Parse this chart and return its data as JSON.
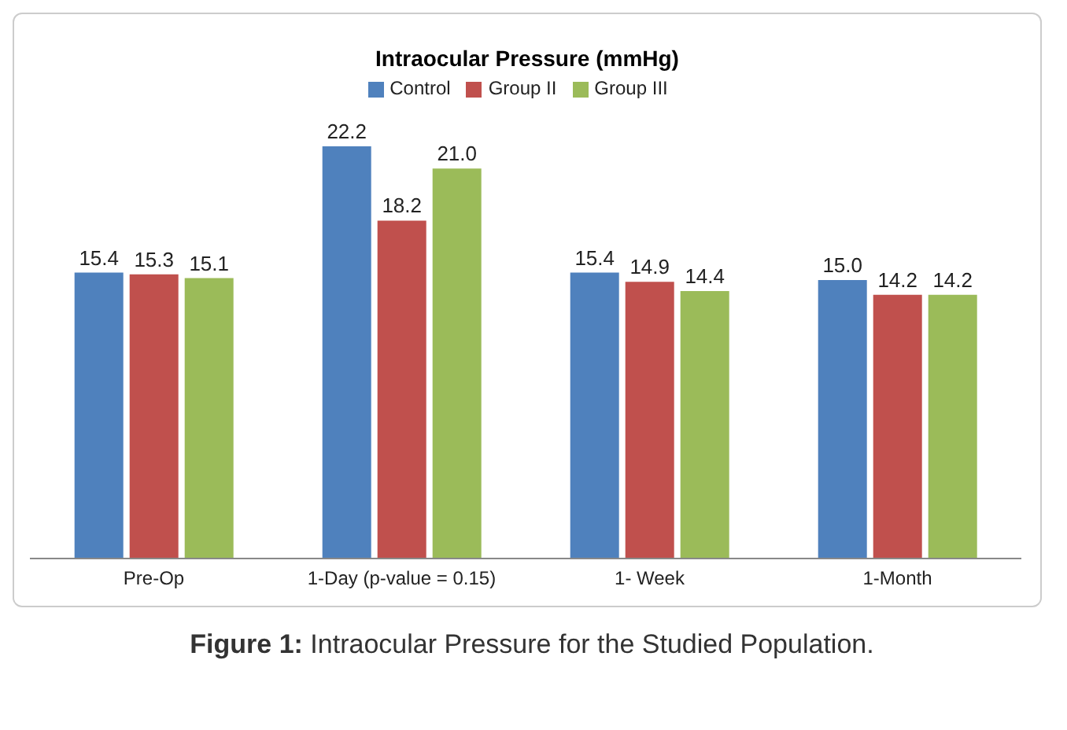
{
  "chart_data": {
    "type": "bar",
    "title": "Intraocular Pressure (mmHg)",
    "categories": [
      "Pre-Op",
      "1-Day (p-value = 0.15)",
      "1- Week",
      "1-Month"
    ],
    "series": [
      {
        "name": "Control",
        "color": "#4f81bd",
        "values": [
          15.4,
          22.2,
          15.4,
          15.0
        ],
        "value_labels": [
          "15.4",
          "22.2",
          "15.4",
          "15.0"
        ]
      },
      {
        "name": "Group II",
        "color": "#c0504d",
        "values": [
          15.3,
          18.2,
          14.9,
          14.2
        ],
        "value_labels": [
          "15.3",
          "18.2",
          "14.9",
          "14.2"
        ]
      },
      {
        "name": "Group III",
        "color": "#9bbb59",
        "values": [
          15.1,
          21.0,
          14.4,
          14.2
        ],
        "value_labels": [
          "15.1",
          "21.0",
          "14.4",
          "14.2"
        ]
      }
    ],
    "legend": "top",
    "annotations": [
      "Figure 1: Intraocular Pressure for the Studied Population."
    ]
  }
}
